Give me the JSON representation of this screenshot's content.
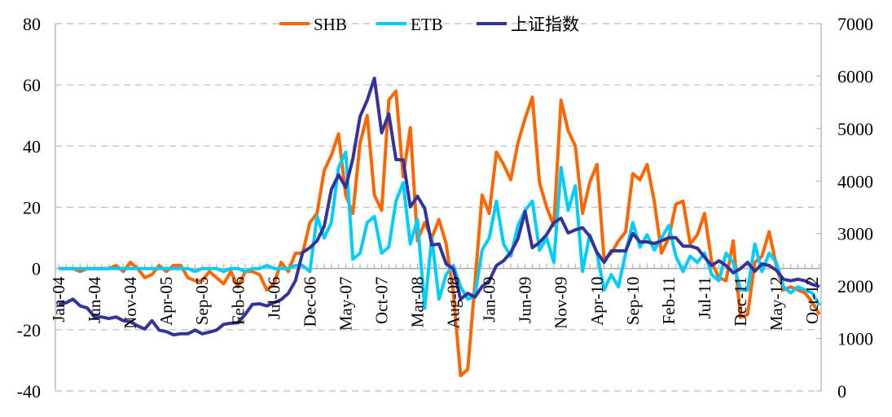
{
  "chart_data": {
    "type": "line",
    "title": "",
    "xlabel": "",
    "ylabel": "",
    "ylim": [
      -40,
      80
    ],
    "y2lim": [
      0,
      7000
    ],
    "yticks": [
      -40,
      -20,
      0,
      20,
      40,
      60,
      80
    ],
    "y2ticks": [
      0,
      1000,
      2000,
      3000,
      4000,
      5000,
      6000,
      7000
    ],
    "grid": true,
    "legend_position": "top-center",
    "x_start": "Jan-04",
    "x_frequency": "monthly",
    "xtick_labels": [
      "Jan-04",
      "Jun-04",
      "Nov-04",
      "Apr-05",
      "Sep-05",
      "Feb-06",
      "Jul-06",
      "Dec-06",
      "May-07",
      "Oct-07",
      "Mar-08",
      "Aug-08",
      "Jan-09",
      "Jun-09",
      "Nov-09",
      "Apr-10",
      "Sep-10",
      "Feb-11",
      "Jul-11",
      "Dec-11",
      "May-12",
      "Oct-12"
    ],
    "xtick_step_months": 5,
    "series": [
      {
        "name": "SHB",
        "axis": "left",
        "color": "#FF6600",
        "values": [
          0,
          0,
          0,
          -1,
          0,
          0,
          0,
          0,
          1,
          -1,
          2,
          0,
          -3,
          -2,
          1,
          -1,
          1,
          1,
          -3,
          -4,
          -4,
          -1,
          -3,
          -5,
          -1,
          -6,
          -1,
          -1,
          -2,
          -7,
          -5,
          2,
          -1,
          5,
          5,
          15,
          18,
          32,
          37,
          44,
          24,
          18,
          41,
          50,
          24,
          19,
          55,
          58,
          30,
          46,
          9,
          15,
          10,
          16,
          8,
          -8,
          -35,
          -33,
          -5,
          24,
          18,
          38,
          34,
          29,
          41,
          49,
          56,
          28,
          20,
          14,
          55,
          45,
          40,
          18,
          28,
          34,
          3,
          5,
          9,
          12,
          31,
          29,
          34,
          22,
          5,
          10,
          21,
          22,
          8,
          11,
          18,
          2,
          -3,
          -4,
          9,
          -16,
          -15,
          2,
          4,
          12,
          1,
          -7,
          -6,
          -7,
          -8,
          -11,
          -15
        ]
      },
      {
        "name": "ETB",
        "axis": "left",
        "color": "#00CCFF",
        "values": [
          0,
          0,
          0,
          0,
          0,
          0,
          0,
          0,
          0,
          0,
          0,
          0,
          0,
          0,
          0,
          0,
          0,
          0,
          0,
          -1,
          0,
          0,
          0,
          -1,
          0,
          0,
          -1,
          0,
          0,
          1,
          0,
          0,
          0,
          1,
          1,
          -1,
          17,
          10,
          15,
          33,
          38,
          3,
          5,
          15,
          17,
          5,
          7,
          22,
          28,
          8,
          16,
          -13,
          10,
          -10,
          -2,
          1,
          -6,
          -10,
          -9,
          6,
          10,
          22,
          8,
          4,
          14,
          19,
          22,
          6,
          10,
          2,
          33,
          19,
          27,
          -1,
          11,
          5,
          -7,
          -2,
          -6,
          5,
          15,
          7,
          11,
          6,
          10,
          14,
          4,
          -1,
          4,
          2,
          5,
          -2,
          -4,
          5,
          2,
          -7,
          -7,
          8,
          -1,
          5,
          2,
          -6,
          -8,
          -6,
          -7,
          -8,
          -12
        ]
      },
      {
        "name": "上证指数",
        "axis": "right",
        "color": "#333399",
        "values": [
          1650,
          1680,
          1750,
          1620,
          1580,
          1410,
          1410,
          1380,
          1410,
          1340,
          1320,
          1240,
          1180,
          1340,
          1160,
          1130,
          1070,
          1090,
          1090,
          1160,
          1090,
          1120,
          1160,
          1270,
          1290,
          1300,
          1460,
          1650,
          1660,
          1620,
          1680,
          1740,
          1860,
          2100,
          2640,
          2730,
          2860,
          3140,
          3840,
          4120,
          3880,
          4430,
          5230,
          5540,
          5960,
          4920,
          5280,
          4410,
          4400,
          3510,
          3710,
          3480,
          2780,
          2800,
          2420,
          2330,
          1750,
          1860,
          1790,
          1990,
          2100,
          2390,
          2480,
          2640,
          2900,
          3420,
          2730,
          2830,
          2980,
          3210,
          3290,
          3010,
          3070,
          3110,
          2950,
          2640,
          2450,
          2670,
          2670,
          2670,
          3000,
          2840,
          2840,
          2810,
          2860,
          2920,
          2920,
          2760,
          2760,
          2720,
          2550,
          2390,
          2480,
          2390,
          2250,
          2330,
          2450,
          2280,
          2420,
          2390,
          2300,
          2130,
          2100,
          2130,
          2100,
          2030,
          1990
        ]
      }
    ]
  }
}
